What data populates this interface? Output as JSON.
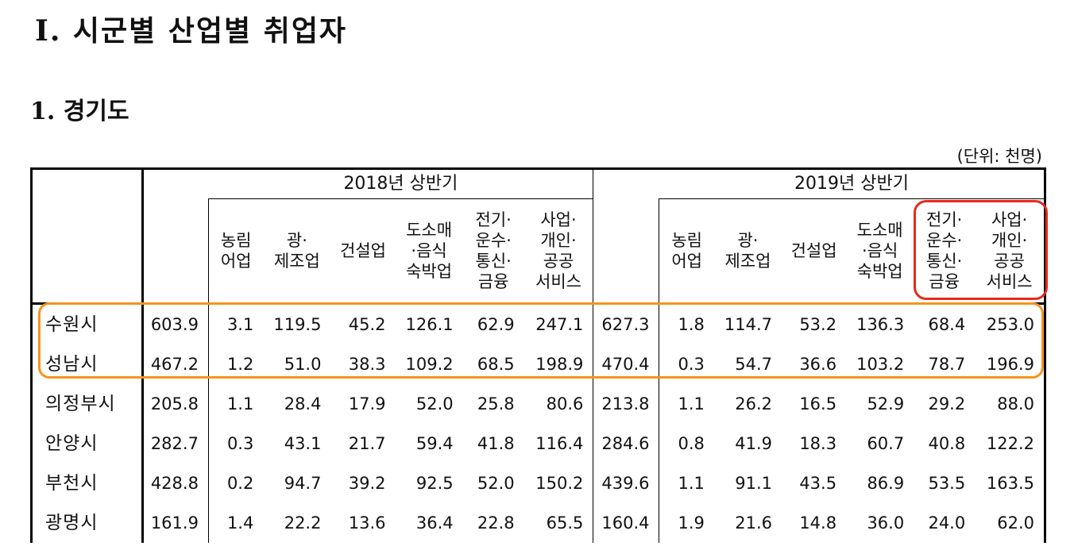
{
  "section_title": "Ⅰ. 시군별 산업별 취업자",
  "subsection_title": "1. 경기도",
  "unit": "(단위: 천명)",
  "periods": [
    "2018년  상반기",
    "2019년  상반기"
  ],
  "columns": [
    [
      "농림",
      "어업"
    ],
    [
      "광·",
      "제조업"
    ],
    [
      "건설업"
    ],
    [
      "도소매",
      "·음식",
      "숙박업"
    ],
    [
      "전기·",
      "운수·",
      "통신·",
      "금융"
    ],
    [
      "사업·",
      "개인·",
      "공공",
      "서비스"
    ]
  ],
  "rows": [
    {
      "city": "수원시",
      "y2018": [
        "603.9",
        "3.1",
        "119.5",
        "45.2",
        "126.1",
        "62.9",
        "247.1"
      ],
      "y2019": [
        "627.3",
        "1.8",
        "114.7",
        "53.2",
        "136.3",
        "68.4",
        "253.0"
      ]
    },
    {
      "city": "성남시",
      "y2018": [
        "467.2",
        "1.2",
        "51.0",
        "38.3",
        "109.2",
        "68.5",
        "198.9"
      ],
      "y2019": [
        "470.4",
        "0.3",
        "54.7",
        "36.6",
        "103.2",
        "78.7",
        "196.9"
      ]
    },
    {
      "city": "의정부시",
      "y2018": [
        "205.8",
        "1.1",
        "28.4",
        "17.9",
        "52.0",
        "25.8",
        "80.6"
      ],
      "y2019": [
        "213.8",
        "1.1",
        "26.2",
        "16.5",
        "52.9",
        "29.2",
        "88.0"
      ]
    },
    {
      "city": "안양시",
      "y2018": [
        "282.7",
        "0.3",
        "43.1",
        "21.7",
        "59.4",
        "41.8",
        "116.4"
      ],
      "y2019": [
        "284.6",
        "0.8",
        "41.9",
        "18.3",
        "60.7",
        "40.8",
        "122.2"
      ]
    },
    {
      "city": "부천시",
      "y2018": [
        "428.8",
        "0.2",
        "94.7",
        "39.2",
        "92.5",
        "52.0",
        "150.2"
      ],
      "y2019": [
        "439.6",
        "1.1",
        "91.1",
        "43.5",
        "86.9",
        "53.5",
        "163.5"
      ]
    },
    {
      "city": "광명시",
      "y2018": [
        "161.9",
        "1.4",
        "22.2",
        "13.6",
        "36.4",
        "22.8",
        "65.5"
      ],
      "y2019": [
        "160.4",
        "1.9",
        "21.6",
        "14.8",
        "36.0",
        "24.0",
        "62.0"
      ]
    }
  ],
  "highlight_colors": {
    "rows": "#f7941d",
    "columns": "#e8281e"
  }
}
